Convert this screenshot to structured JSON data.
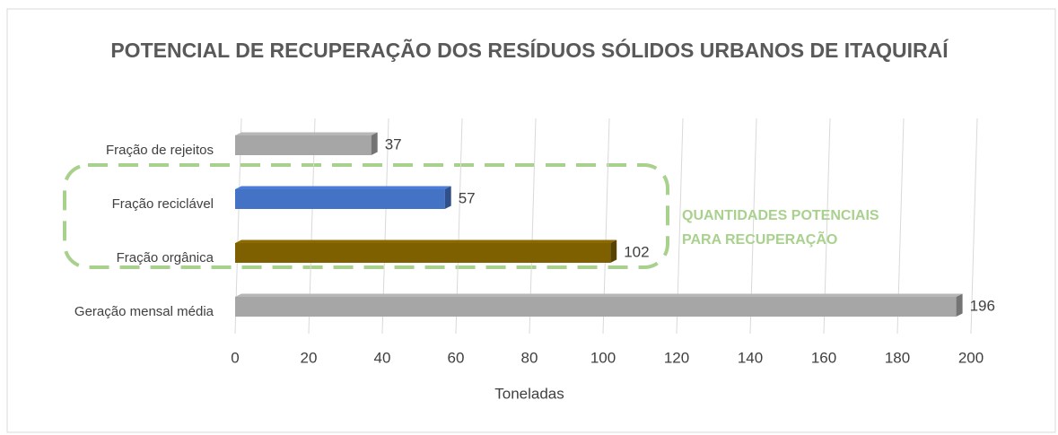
{
  "chart_data": {
    "type": "bar",
    "orientation": "horizontal",
    "title": "POTENCIAL DE RECUPERAÇÃO DOS RESÍDUOS SÓLIDOS URBANOS DE ITAQUIRAÍ",
    "x_label": "Toneladas",
    "categories": [
      "Fração de rejeitos",
      "Fração reciclável",
      "Fração orgânica",
      "Geração mensal média"
    ],
    "values": [
      37,
      57,
      102,
      196
    ],
    "colors": [
      "#a6a6a6",
      "#4472c4",
      "#7f6000",
      "#a6a6a6"
    ],
    "xlim": [
      0,
      200
    ],
    "xticks": [
      0,
      20,
      40,
      60,
      80,
      100,
      120,
      140,
      160,
      180,
      200
    ],
    "grid": true,
    "annotation": [
      "QUANTIDADES POTENCIAIS",
      "PARA RECUPERAÇÃO"
    ]
  }
}
